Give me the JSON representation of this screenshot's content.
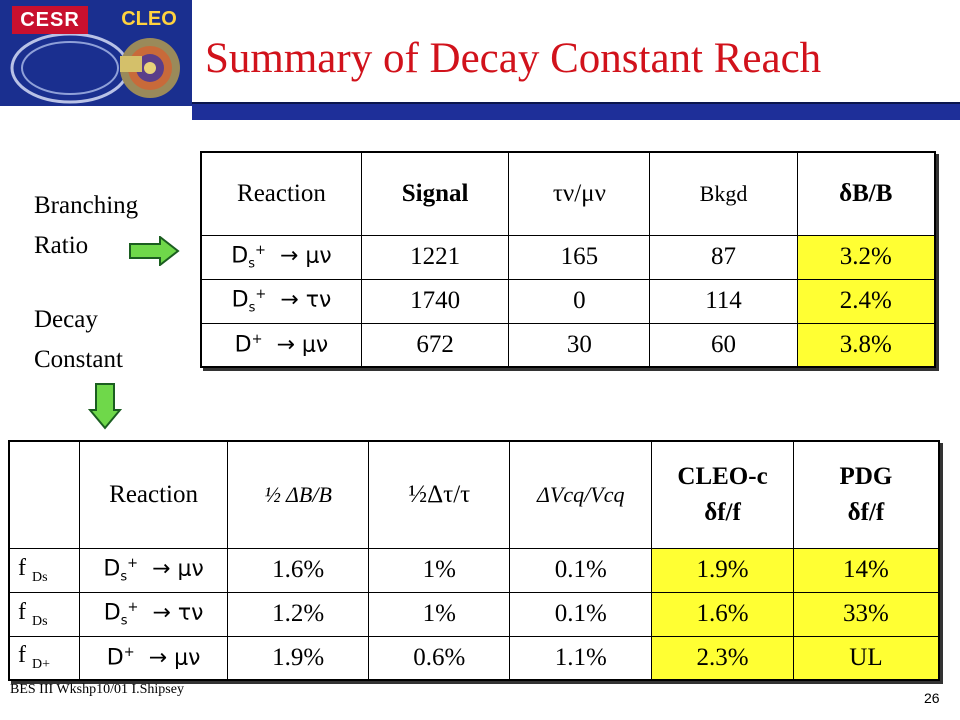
{
  "logo": {
    "left_text": "CESR",
    "right_text": "CLEO"
  },
  "title": "Summary of Decay Constant Reach",
  "side": {
    "br_line1": "Branching",
    "br_line2": "Ratio",
    "dc_line1": "Decay",
    "dc_line2": "Constant"
  },
  "colors": {
    "title": "#d1121b",
    "bar": "#1e2f99",
    "highlight": "#ffff33",
    "arrow": "#6fd84a"
  },
  "icons": {
    "right_arrow": "right-arrow-icon",
    "down_arrow": "down-arrow-icon"
  },
  "table1": {
    "headers": [
      "Reaction",
      "Signal",
      "τν/μν",
      "Bkgd",
      "δB/B"
    ],
    "rows": [
      {
        "reaction": "D_s^+ → μν",
        "signal": "1221",
        "ratio": "165",
        "bkgd": "87",
        "dbb": "3.2%"
      },
      {
        "reaction": "D_s^+ → τν",
        "signal": "1740",
        "ratio": "0",
        "bkgd": "114",
        "dbb": "2.4%"
      },
      {
        "reaction": "D^+ → μν",
        "signal": "672",
        "ratio": "30",
        "bkgd": "60",
        "dbb": "3.8%"
      }
    ]
  },
  "table2": {
    "headers": [
      "",
      "Reaction",
      "½ ΔB/B",
      "½Δτ/τ",
      "ΔVcq/Vcq",
      "CLEO-c",
      "δf/f",
      "PDG",
      "δf/f"
    ],
    "rows": [
      {
        "f": "f",
        "fsub": "Ds",
        "reaction": "D_s^+ → μν",
        "hdb": "1.6%",
        "htau": "1%",
        "vcq": "0.1%",
        "cleoc": "1.9%",
        "pdg": "14%"
      },
      {
        "f": "f",
        "fsub": "Ds",
        "reaction": "D_s^+ → τν",
        "hdb": "1.2%",
        "htau": "1%",
        "vcq": "0.1%",
        "cleoc": "1.6%",
        "pdg": "33%"
      },
      {
        "f": "f",
        "fsub": "D+",
        "reaction": "D^+ → μν",
        "hdb": "1.9%",
        "htau": "0.6%",
        "vcq": "1.1%",
        "cleoc": "2.3%",
        "pdg": "UL"
      }
    ]
  },
  "footer": "BES III Wkshp10/01 I.Shipsey",
  "page_number": "26"
}
